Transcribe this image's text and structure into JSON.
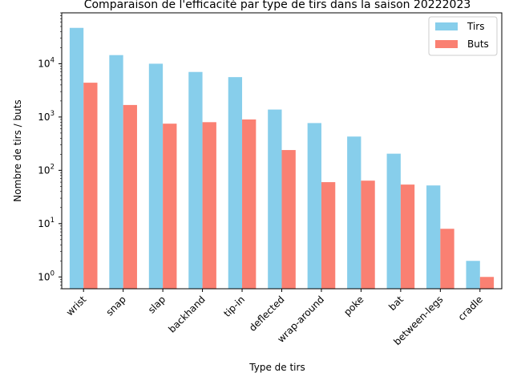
{
  "chart_data": {
    "type": "bar",
    "title": "Comparaison de l'efficacité par type de tirs dans la saison 20222023",
    "xlabel": "Type de tirs",
    "ylabel": "Nombre de tirs / buts",
    "yscale": "log",
    "ylim": [
      0.6,
      90000
    ],
    "yticks": [
      {
        "value": 1,
        "base": "10",
        "exp": "0"
      },
      {
        "value": 10,
        "base": "10",
        "exp": "1"
      },
      {
        "value": 100,
        "base": "10",
        "exp": "2"
      },
      {
        "value": 1000,
        "base": "10",
        "exp": "3"
      },
      {
        "value": 10000,
        "base": "10",
        "exp": "4"
      }
    ],
    "categories": [
      "wrist",
      "snap",
      "slap",
      "backhand",
      "tip-in",
      "deflected",
      "wrap-around",
      "poke",
      "bat",
      "between-legs",
      "cradle"
    ],
    "series": [
      {
        "name": "Tirs",
        "color": "#87ceeb",
        "values": [
          47000,
          14500,
          10000,
          7000,
          5600,
          1380,
          770,
          430,
          205,
          52,
          2
        ]
      },
      {
        "name": "Buts",
        "color": "#fa8072",
        "values": [
          4400,
          1680,
          750,
          800,
          900,
          240,
          60,
          64,
          54,
          8,
          1
        ]
      }
    ],
    "legend": {
      "position": "top-right"
    },
    "grid": false
  }
}
